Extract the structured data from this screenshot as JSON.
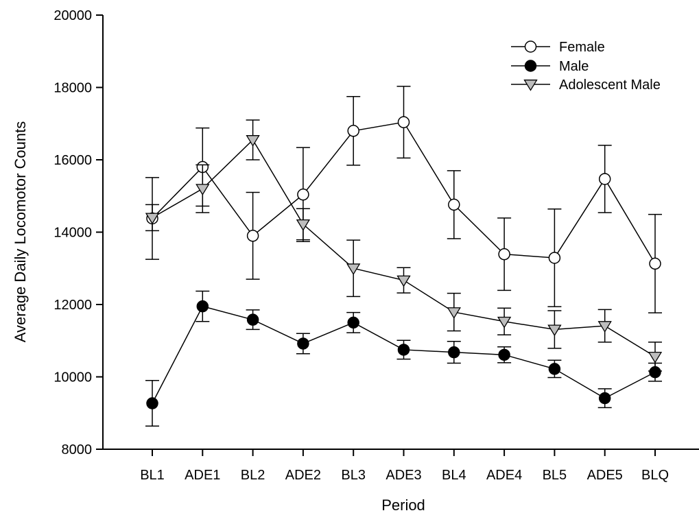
{
  "chart_data": {
    "type": "line",
    "xlabel": "Period",
    "ylabel": "Average Daily Locomotor Counts",
    "categories": [
      "BL1",
      "ADE1",
      "BL2",
      "ADE2",
      "BL3",
      "ADE3",
      "BL4",
      "ADE4",
      "BL5",
      "ADE5",
      "BLQ"
    ],
    "ylim": [
      8000,
      20000
    ],
    "yticks": [
      8000,
      10000,
      12000,
      14000,
      16000,
      18000,
      20000
    ],
    "grid": false,
    "legend_position": "top-right",
    "series": [
      {
        "name": "Female",
        "marker": "circle-open",
        "values": [
          14380,
          15800,
          13900,
          15040,
          16800,
          17040,
          14760,
          13390,
          13290,
          15470,
          13130
        ],
        "errors": [
          1130,
          1080,
          1200,
          1300,
          950,
          990,
          940,
          1000,
          1350,
          930,
          1360
        ]
      },
      {
        "name": "Male",
        "marker": "circle-filled",
        "values": [
          9270,
          11950,
          11580,
          10920,
          11500,
          10750,
          10680,
          10610,
          10220,
          9410,
          10130
        ],
        "errors": [
          630,
          420,
          270,
          280,
          280,
          260,
          300,
          220,
          240,
          260,
          250
        ]
      },
      {
        "name": "Adolescent Male",
        "marker": "triangle-down-gray",
        "values": [
          14400,
          15200,
          16550,
          14220,
          13000,
          12670,
          11790,
          11530,
          11310,
          11410,
          10560
        ],
        "errors": [
          360,
          660,
          550,
          430,
          780,
          350,
          520,
          370,
          520,
          450,
          400
        ]
      }
    ],
    "colors": {
      "line": "#000000",
      "triangle_fill": "#bdbdbd",
      "open_fill": "#ffffff",
      "filled": "#000000"
    }
  }
}
